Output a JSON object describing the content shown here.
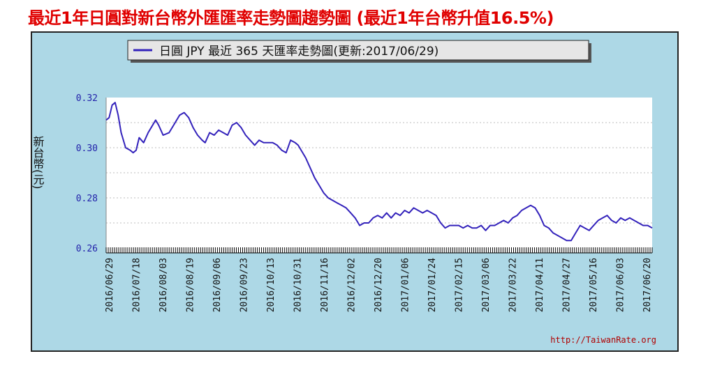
{
  "headline": "最近1年日圓對新台幣外匯匯率走勢圖趨勢圖 (最近1年台幣升值16.5%)",
  "chart_data": {
    "type": "line",
    "legend_text": "日圓 JPY 最近 365 天匯率走勢圖(更新:2017/06/29)",
    "ylabel": "新台幣(元)",
    "ylim": [
      0.26,
      0.32
    ],
    "yticks": [
      "0.26",
      "0.28",
      "0.30",
      "0.32"
    ],
    "xticks": [
      "2016/06/29",
      "2016/07/18",
      "2016/08/03",
      "2016/08/19",
      "2016/09/06",
      "2016/09/23",
      "2016/10/13",
      "2016/10/31",
      "2016/11/16",
      "2016/12/02",
      "2016/12/20",
      "2017/01/06",
      "2017/01/24",
      "2017/02/15",
      "2017/03/06",
      "2017/03/22",
      "2017/04/11",
      "2017/04/27",
      "2017/05/16",
      "2017/06/03",
      "2017/06/20"
    ],
    "series": [
      {
        "name": "日圓 JPY",
        "color": "#3322bb",
        "x": [
          0,
          2,
          4,
          6,
          8,
          10,
          13,
          16,
          18,
          20,
          22,
          25,
          28,
          30,
          33,
          35,
          38,
          42,
          45,
          47,
          49,
          52,
          55,
          58,
          61,
          64,
          66,
          69,
          72,
          75,
          78,
          81,
          84,
          87,
          90,
          93,
          96,
          99,
          102,
          105,
          108,
          111,
          114,
          117,
          120,
          123,
          126,
          128,
          130,
          133,
          136,
          139,
          142,
          145,
          148,
          151,
          154,
          157,
          160,
          163,
          166,
          169,
          172,
          175,
          178,
          181,
          184,
          187,
          190,
          193,
          196,
          199,
          202,
          205,
          208,
          211,
          214,
          217,
          220,
          223,
          226,
          229,
          232,
          235,
          238,
          241,
          244,
          247,
          250,
          253,
          256,
          259,
          262,
          265,
          268,
          271,
          274,
          277,
          280,
          283,
          286,
          289,
          292,
          295,
          298,
          301,
          304,
          307,
          310,
          313,
          316,
          319,
          322,
          325,
          328,
          331,
          334,
          337,
          340,
          343,
          346,
          349,
          352,
          355,
          358,
          361,
          364
        ],
        "values": [
          0.311,
          0.312,
          0.317,
          0.318,
          0.313,
          0.306,
          0.3,
          0.299,
          0.298,
          0.299,
          0.304,
          0.302,
          0.306,
          0.308,
          0.311,
          0.309,
          0.305,
          0.306,
          0.309,
          0.311,
          0.313,
          0.314,
          0.312,
          0.308,
          0.305,
          0.303,
          0.302,
          0.306,
          0.305,
          0.307,
          0.306,
          0.305,
          0.309,
          0.31,
          0.308,
          0.305,
          0.303,
          0.301,
          0.303,
          0.302,
          0.302,
          0.302,
          0.301,
          0.299,
          0.298,
          0.303,
          0.302,
          0.301,
          0.299,
          0.296,
          0.292,
          0.288,
          0.285,
          0.282,
          0.28,
          0.279,
          0.278,
          0.277,
          0.276,
          0.274,
          0.272,
          0.269,
          0.27,
          0.27,
          0.272,
          0.273,
          0.272,
          0.274,
          0.272,
          0.274,
          0.273,
          0.275,
          0.274,
          0.276,
          0.275,
          0.274,
          0.275,
          0.274,
          0.273,
          0.27,
          0.268,
          0.269,
          0.269,
          0.269,
          0.268,
          0.269,
          0.268,
          0.268,
          0.269,
          0.267,
          0.269,
          0.269,
          0.27,
          0.271,
          0.27,
          0.272,
          0.273,
          0.275,
          0.276,
          0.277,
          0.276,
          0.273,
          0.269,
          0.268,
          0.266,
          0.265,
          0.264,
          0.263,
          0.263,
          0.266,
          0.269,
          0.268,
          0.267,
          0.269,
          0.271,
          0.272,
          0.273,
          0.271,
          0.27,
          0.272,
          0.271,
          0.272,
          0.271,
          0.27,
          0.269,
          0.269,
          0.268
        ]
      }
    ],
    "grid": true,
    "legend_position": "top"
  },
  "watermark": "http://TaiwanRate.org",
  "colors": {
    "headline": "#e00000",
    "frame_bg": "#add8e6",
    "plot_bg": "#ffffff",
    "axis_text": "#2222aa",
    "watermark": "#b00000"
  }
}
